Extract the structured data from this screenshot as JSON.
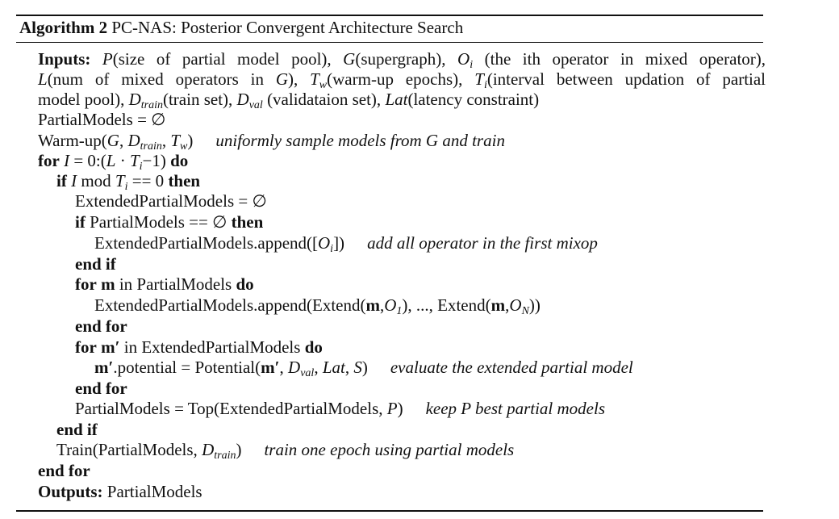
{
  "title": {
    "label": "Algorithm 2",
    "text": "PC-NAS: Posterior Convergent Architecture Search"
  },
  "inputs": {
    "keyword": "Inputs:",
    "P": "P",
    "P_desc": "(size of partial model pool), ",
    "G": "G",
    "G_desc": "(supergraph), ",
    "O": "O",
    "O_sub": "i",
    "O_desc": " (the ith operator in mixed operator),",
    "L": "L",
    "L_desc": "(num of mixed operators in ",
    "L_G": "G",
    "L_close": "), ",
    "Tw": "T",
    "Tw_sub": "w",
    "Tw_desc": "(warm-up epochs), ",
    "Ti": "T",
    "Ti_sub": "i",
    "Ti_desc": "(interval between updation of partial",
    "line3_pre": "model pool), ",
    "Dtrain": "D",
    "Dtrain_sub": "train",
    "Dtrain_desc": "(train set), ",
    "Dval": "D",
    "Dval_sub": "val",
    "Dval_desc": " (validataion set), ",
    "Lat": "Lat",
    "Lat_desc": "(latency constraint)"
  },
  "code": {
    "init": "PartialModels = ∅",
    "warmup_pre": "Warm-up(",
    "warmup_G": "G",
    "warmup_comma": ", ",
    "warmup_D": "D",
    "warmup_D_sub": "train",
    "warmup_comma2": ", ",
    "warmup_T": "T",
    "warmup_T_sub": "w",
    "warmup_close": ")",
    "warmup_comment": "uniformly sample models from G and train",
    "for1_kw": "for",
    "for1_I": "I",
    "for1_mid": " = 0:(",
    "for1_L": "L",
    "for1_dot": " · ",
    "for1_T": "T",
    "for1_T_sub": "i",
    "for1_end": "−1)",
    "for1_do": "do",
    "if1_kw": "if",
    "if1_I": "I",
    "if1_mod": " mod ",
    "if1_T": "T",
    "if1_T_sub": "i",
    "if1_eq": " == 0 ",
    "if1_then": "then",
    "ext_init": "ExtendedPartialModels = ∅",
    "if2_kw": "if",
    "if2_cond": "PartialModels == ∅",
    "if2_then": "then",
    "append1_pre": "ExtendedPartialModels.append([",
    "append1_O": "O",
    "append1_O_sub": "i",
    "append1_close": "])",
    "append1_comment": "add all operator in the first mixop",
    "endif1": "end if",
    "for2_kw": "for",
    "for2_m": "m",
    "for2_mid": " in PartialModels ",
    "for2_do": "do",
    "append2_pre": "ExtendedPartialModels.append(Extend(",
    "append2_m1": "m",
    "append2_c1": ",",
    "append2_O1": "O",
    "append2_O1_sub": "1",
    "append2_mid": "), ..., Extend(",
    "append2_m2": "m",
    "append2_c2": ",",
    "append2_ON": "O",
    "append2_ON_sub": "N",
    "append2_close": "))",
    "endfor2": "end for",
    "for3_kw": "for",
    "for3_m": "m′",
    "for3_mid": " in ExtendedPartialModels ",
    "for3_do": "do",
    "pot_m": "m′",
    "pot_mid": ".potential = Potential(",
    "pot_m2": "m′",
    "pot_c1": ", ",
    "pot_D": "D",
    "pot_D_sub": "val",
    "pot_c2": ", ",
    "pot_Lat": "Lat",
    "pot_c3": ", ",
    "pot_S": "S",
    "pot_close": ")",
    "pot_comment": "evaluate the extended partial model",
    "endfor3": "end for",
    "top_pre": "PartialModels = Top(ExtendedPartialModels, ",
    "top_P": "P",
    "top_close": ")",
    "top_comment": "keep P best partial models",
    "endif2": "end if",
    "train_pre": "Train(PartialModels, ",
    "train_D": "D",
    "train_D_sub": "train",
    "train_close": ")",
    "train_comment": "train one epoch using partial models",
    "endfor1": "end for",
    "outputs_kw": "Outputs:",
    "outputs_val": " PartialModels"
  }
}
